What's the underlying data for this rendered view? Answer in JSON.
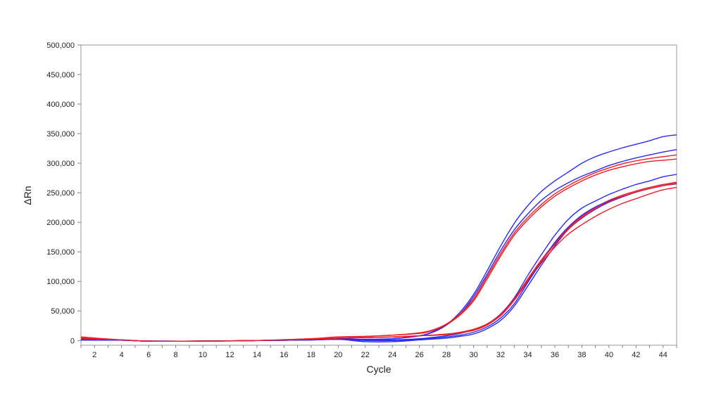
{
  "chart_data": {
    "type": "line",
    "title": "",
    "xlabel": "Cycle",
    "ylabel": "ΔRn",
    "xlim": [
      1,
      45
    ],
    "ylim": [
      -8000,
      500000
    ],
    "x_ticks": [
      2,
      4,
      6,
      8,
      10,
      12,
      14,
      16,
      18,
      20,
      22,
      24,
      26,
      28,
      30,
      32,
      34,
      36,
      38,
      40,
      42,
      44
    ],
    "y_ticks": [
      {
        "value": 0,
        "label": "0"
      },
      {
        "value": 50000,
        "label": "50,000"
      },
      {
        "value": 100000,
        "label": "100,000"
      },
      {
        "value": 150000,
        "label": "150,000"
      },
      {
        "value": 200000,
        "label": "200,000"
      },
      {
        "value": 250000,
        "label": "250,000"
      },
      {
        "value": 300000,
        "label": "300,000"
      },
      {
        "value": 350000,
        "label": "350,000"
      },
      {
        "value": 400000,
        "label": "400,000"
      },
      {
        "value": 450000,
        "label": "450,000"
      },
      {
        "value": 500000,
        "label": "500,000"
      }
    ],
    "grid": false,
    "legend": "none",
    "colors": {
      "blue": "#2a2af0",
      "red": "#ee1c24",
      "axis": "#808080"
    },
    "series": [
      {
        "color": "blue",
        "x": [
          1,
          4,
          6,
          10,
          14,
          18,
          20,
          22,
          24,
          26,
          27,
          28,
          29,
          30,
          31,
          32,
          33,
          34,
          35,
          36,
          37,
          38,
          39,
          40,
          41,
          42,
          43,
          44,
          45
        ],
        "y": [
          1000,
          500,
          -1000,
          -1000,
          0,
          1000,
          3000,
          2000,
          3000,
          8000,
          15000,
          27000,
          48000,
          78000,
          118000,
          160000,
          198000,
          228000,
          252000,
          270000,
          285000,
          300000,
          311000,
          319000,
          326000,
          332000,
          338000,
          345000,
          348000
        ]
      },
      {
        "color": "blue",
        "x": [
          1,
          4,
          6,
          10,
          14,
          18,
          20,
          22,
          24,
          26,
          27,
          28,
          29,
          30,
          31,
          32,
          33,
          34,
          35,
          36,
          37,
          38,
          39,
          40,
          41,
          42,
          43,
          44,
          45
        ],
        "y": [
          2000,
          500,
          -1000,
          -1000,
          0,
          1000,
          3000,
          2000,
          3000,
          8000,
          14000,
          26000,
          45000,
          74000,
          112000,
          152000,
          187000,
          214000,
          237000,
          254000,
          267000,
          278000,
          287000,
          296000,
          303000,
          309000,
          314000,
          319000,
          323000
        ]
      },
      {
        "color": "red",
        "x": [
          1,
          4,
          6,
          10,
          14,
          18,
          20,
          22,
          24,
          26,
          27,
          28,
          29,
          30,
          31,
          32,
          33,
          34,
          35,
          36,
          37,
          38,
          39,
          40,
          41,
          42,
          43,
          44,
          45
        ],
        "y": [
          6000,
          1000,
          -1000,
          -1000,
          0,
          3000,
          6000,
          7000,
          9000,
          13000,
          18000,
          28000,
          45000,
          70000,
          108000,
          147000,
          182000,
          208000,
          230000,
          248000,
          262000,
          274000,
          284000,
          292000,
          299000,
          304000,
          308000,
          311000,
          314000
        ]
      },
      {
        "color": "red",
        "x": [
          1,
          4,
          6,
          10,
          14,
          18,
          20,
          22,
          24,
          26,
          27,
          28,
          29,
          30,
          31,
          32,
          33,
          34,
          35,
          36,
          37,
          38,
          39,
          40,
          41,
          42,
          43,
          44,
          45
        ],
        "y": [
          5000,
          1000,
          -1000,
          -1000,
          0,
          3000,
          6000,
          7000,
          9000,
          12000,
          17000,
          27000,
          43000,
          67000,
          104000,
          143000,
          178000,
          204000,
          226000,
          244000,
          258000,
          270000,
          280000,
          288000,
          294000,
          299000,
          303000,
          305000,
          307000
        ]
      },
      {
        "color": "blue",
        "x": [
          1,
          4,
          6,
          10,
          14,
          18,
          20,
          22,
          24,
          26,
          28,
          29,
          30,
          31,
          32,
          33,
          34,
          35,
          36,
          37,
          38,
          39,
          40,
          41,
          42,
          43,
          44,
          45
        ],
        "y": [
          1000,
          500,
          -1000,
          -1000,
          0,
          1000,
          2000,
          1000,
          1000,
          3000,
          8000,
          12000,
          18000,
          28000,
          45000,
          72000,
          110000,
          145000,
          178000,
          205000,
          224000,
          236000,
          247000,
          256000,
          264000,
          270000,
          277000,
          281000
        ]
      },
      {
        "color": "blue",
        "x": [
          1,
          4,
          6,
          10,
          14,
          18,
          20,
          22,
          24,
          26,
          28,
          29,
          30,
          31,
          32,
          33,
          34,
          35,
          36,
          37,
          38,
          39,
          40,
          41,
          42,
          43,
          44,
          45
        ],
        "y": [
          1000,
          500,
          -1000,
          -1000,
          0,
          1000,
          2000,
          -2000,
          -2000,
          1000,
          4000,
          7000,
          11000,
          20000,
          34000,
          58000,
          92000,
          127000,
          160000,
          188000,
          207000,
          222000,
          234000,
          243000,
          251000,
          257000,
          262000,
          266000
        ]
      },
      {
        "color": "red",
        "x": [
          1,
          4,
          6,
          10,
          14,
          18,
          20,
          22,
          24,
          26,
          28,
          29,
          30,
          31,
          32,
          33,
          34,
          35,
          36,
          37,
          38,
          39,
          40,
          41,
          42,
          43,
          44,
          45
        ],
        "y": [
          3000,
          1000,
          -1000,
          -1000,
          0,
          2000,
          4000,
          5000,
          6000,
          8000,
          10000,
          13000,
          17000,
          26000,
          43000,
          68000,
          100000,
          131000,
          158000,
          180000,
          196000,
          210000,
          222000,
          232000,
          240000,
          248000,
          255000,
          259000
        ]
      },
      {
        "color": "red",
        "x": [
          1,
          4,
          6,
          10,
          14,
          18,
          20,
          22,
          24,
          26,
          28,
          29,
          30,
          31,
          32,
          33,
          34,
          35,
          36,
          37,
          38,
          39,
          40,
          41,
          42,
          43,
          44,
          45
        ],
        "y": [
          3000,
          1000,
          -1000,
          -1000,
          0,
          2000,
          4000,
          5000,
          6000,
          8000,
          11000,
          14000,
          19000,
          28000,
          44000,
          70000,
          104000,
          136000,
          165000,
          190000,
          210000,
          225000,
          237000,
          246000,
          253000,
          259000,
          264000,
          268000
        ]
      },
      {
        "color": "blue",
        "x": [
          1,
          4,
          6,
          10,
          14,
          18,
          20,
          22,
          24,
          26,
          28,
          29,
          30,
          31,
          32,
          33,
          34,
          35,
          36,
          37,
          38,
          39,
          40,
          41,
          42,
          43,
          44,
          45
        ],
        "y": [
          1000,
          500,
          -1000,
          -1000,
          0,
          1000,
          2000,
          0,
          0,
          2000,
          6000,
          9000,
          14000,
          23000,
          38000,
          62000,
          98000,
          133000,
          166000,
          192000,
          212000,
          226000,
          236000,
          244000,
          251000,
          257000,
          262000,
          265000
        ]
      },
      {
        "color": "red",
        "x": [
          1,
          4,
          6,
          10,
          14,
          18,
          20,
          22,
          24,
          26,
          28,
          29,
          30,
          31,
          32,
          33,
          34,
          35,
          36,
          37,
          38,
          39,
          40,
          41,
          42,
          43,
          44,
          45
        ],
        "y": [
          4000,
          1000,
          -1000,
          -1000,
          0,
          2000,
          4000,
          5000,
          6000,
          8000,
          10000,
          13000,
          18000,
          27000,
          42000,
          68000,
          102000,
          134000,
          163000,
          188000,
          208000,
          223000,
          235000,
          244000,
          251000,
          257000,
          262000,
          266000
        ]
      }
    ]
  }
}
